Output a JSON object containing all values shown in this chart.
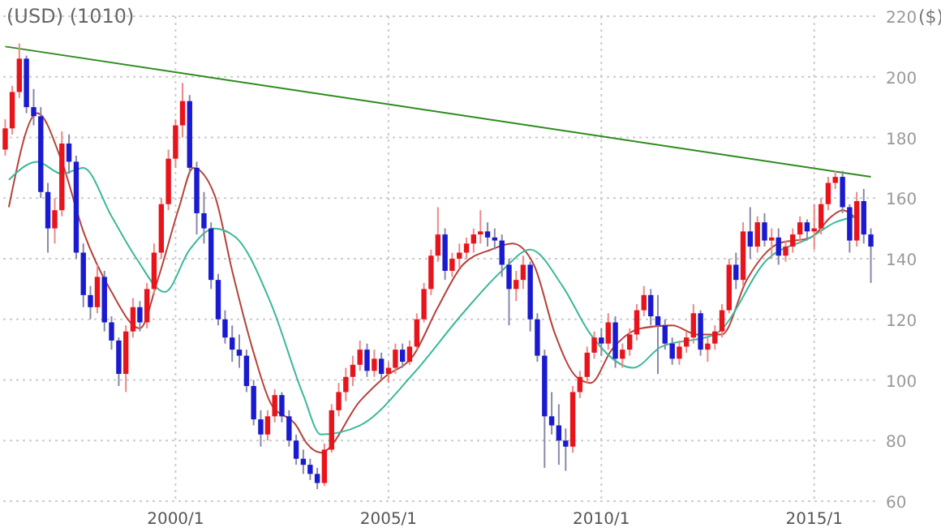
{
  "chart_data": {
    "type": "candlestick",
    "title": "(USD) (1010)",
    "ylabel": "($)",
    "x": [
      "1996-01",
      "1996-03",
      "1996-05",
      "1996-07",
      "1996-09",
      "1996-11",
      "1997-01",
      "1997-03",
      "1997-05",
      "1997-07",
      "1997-09",
      "1997-11",
      "1998-01",
      "1998-03",
      "1998-05",
      "1998-07",
      "1998-09",
      "1998-11",
      "1999-01",
      "1999-03",
      "1999-05",
      "1999-07",
      "1999-09",
      "1999-11",
      "2000-01",
      "2000-03",
      "2000-05",
      "2000-07",
      "2000-09",
      "2000-11",
      "2001-01",
      "2001-03",
      "2001-05",
      "2001-07",
      "2001-09",
      "2001-11",
      "2002-01",
      "2002-03",
      "2002-05",
      "2002-07",
      "2002-09",
      "2002-11",
      "2003-01",
      "2003-03",
      "2003-05",
      "2003-07",
      "2003-09",
      "2003-11",
      "2004-01",
      "2004-03",
      "2004-05",
      "2004-07",
      "2004-09",
      "2004-11",
      "2005-01",
      "2005-03",
      "2005-05",
      "2005-07",
      "2005-09",
      "2005-11",
      "2006-01",
      "2006-03",
      "2006-05",
      "2006-07",
      "2006-09",
      "2006-11",
      "2007-01",
      "2007-03",
      "2007-05",
      "2007-07",
      "2007-09",
      "2007-11",
      "2008-01",
      "2008-03",
      "2008-05",
      "2008-07",
      "2008-09",
      "2008-11",
      "2009-01",
      "2009-03",
      "2009-05",
      "2009-07",
      "2009-09",
      "2009-11",
      "2010-01",
      "2010-03",
      "2010-05",
      "2010-07",
      "2010-09",
      "2010-11",
      "2011-01",
      "2011-03",
      "2011-05",
      "2011-07",
      "2011-09",
      "2011-11",
      "2012-01",
      "2012-03",
      "2012-05",
      "2012-07",
      "2012-09",
      "2012-11",
      "2013-01",
      "2013-03",
      "2013-05",
      "2013-07",
      "2013-09",
      "2013-11",
      "2014-01",
      "2014-03",
      "2014-05",
      "2014-07",
      "2014-09",
      "2014-11",
      "2015-01",
      "2015-03",
      "2015-05",
      "2015-07",
      "2015-09",
      "2015-11",
      "2016-01",
      "2016-03",
      "2016-05"
    ],
    "ohlc": [
      [
        176,
        186,
        174,
        183
      ],
      [
        183,
        197,
        181,
        195
      ],
      [
        195,
        211,
        193,
        206
      ],
      [
        206,
        207,
        188,
        190
      ],
      [
        190,
        196,
        184,
        187
      ],
      [
        187,
        190,
        160,
        162
      ],
      [
        162,
        165,
        142,
        150
      ],
      [
        150,
        160,
        145,
        156
      ],
      [
        156,
        182,
        154,
        178
      ],
      [
        178,
        181,
        168,
        172
      ],
      [
        172,
        174,
        140,
        142
      ],
      [
        142,
        145,
        124,
        128
      ],
      [
        128,
        131,
        120,
        124
      ],
      [
        124,
        138,
        122,
        134
      ],
      [
        134,
        136,
        116,
        119
      ],
      [
        119,
        121,
        110,
        113
      ],
      [
        113,
        114,
        98,
        102
      ],
      [
        102,
        118,
        96,
        116
      ],
      [
        116,
        127,
        114,
        124
      ],
      [
        124,
        126,
        116,
        119
      ],
      [
        119,
        132,
        117,
        130
      ],
      [
        130,
        145,
        128,
        142
      ],
      [
        142,
        160,
        140,
        158
      ],
      [
        158,
        176,
        156,
        173
      ],
      [
        173,
        186,
        170,
        184
      ],
      [
        184,
        198,
        180,
        192
      ],
      [
        192,
        194,
        168,
        170
      ],
      [
        170,
        172,
        148,
        155
      ],
      [
        155,
        162,
        145,
        150
      ],
      [
        150,
        152,
        130,
        133
      ],
      [
        133,
        135,
        118,
        120
      ],
      [
        120,
        123,
        112,
        114
      ],
      [
        114,
        118,
        106,
        110
      ],
      [
        110,
        115,
        104,
        108
      ],
      [
        108,
        110,
        96,
        98
      ],
      [
        98,
        100,
        85,
        87
      ],
      [
        87,
        90,
        78,
        82
      ],
      [
        82,
        90,
        80,
        88
      ],
      [
        88,
        97,
        86,
        95
      ],
      [
        95,
        96,
        86,
        88
      ],
      [
        88,
        90,
        78,
        80
      ],
      [
        80,
        82,
        72,
        74
      ],
      [
        74,
        77,
        69,
        72
      ],
      [
        72,
        74,
        67,
        69
      ],
      [
        69,
        71,
        64,
        66
      ],
      [
        66,
        79,
        65,
        77
      ],
      [
        77,
        92,
        76,
        90
      ],
      [
        90,
        99,
        88,
        96
      ],
      [
        96,
        104,
        93,
        101
      ],
      [
        101,
        108,
        98,
        105
      ],
      [
        105,
        113,
        103,
        110
      ],
      [
        110,
        112,
        101,
        103
      ],
      [
        103,
        110,
        101,
        107
      ],
      [
        107,
        109,
        100,
        102
      ],
      [
        102,
        106,
        99,
        104
      ],
      [
        104,
        112,
        102,
        110
      ],
      [
        110,
        112,
        104,
        106
      ],
      [
        106,
        113,
        105,
        111
      ],
      [
        111,
        122,
        110,
        120
      ],
      [
        120,
        132,
        119,
        130
      ],
      [
        130,
        143,
        128,
        141
      ],
      [
        141,
        157,
        139,
        148
      ],
      [
        148,
        150,
        133,
        136
      ],
      [
        136,
        142,
        134,
        140
      ],
      [
        140,
        145,
        137,
        142
      ],
      [
        142,
        147,
        140,
        145
      ],
      [
        145,
        150,
        142,
        148
      ],
      [
        148,
        156,
        145,
        149
      ],
      [
        149,
        152,
        144,
        147
      ],
      [
        147,
        150,
        143,
        146
      ],
      [
        146,
        148,
        134,
        138
      ],
      [
        138,
        140,
        118,
        130
      ],
      [
        130,
        136,
        126,
        133
      ],
      [
        133,
        141,
        130,
        138
      ],
      [
        138,
        139,
        116,
        120
      ],
      [
        120,
        122,
        106,
        108
      ],
      [
        108,
        110,
        71,
        88
      ],
      [
        88,
        96,
        82,
        85
      ],
      [
        85,
        92,
        72,
        80
      ],
      [
        80,
        84,
        70,
        78
      ],
      [
        78,
        98,
        76,
        96
      ],
      [
        96,
        103,
        94,
        101
      ],
      [
        101,
        111,
        99,
        109
      ],
      [
        109,
        116,
        107,
        114
      ],
      [
        114,
        117,
        108,
        112
      ],
      [
        112,
        122,
        110,
        119
      ],
      [
        119,
        121,
        104,
        107
      ],
      [
        107,
        112,
        104,
        110
      ],
      [
        110,
        117,
        108,
        115
      ],
      [
        115,
        125,
        113,
        123
      ],
      [
        123,
        131,
        121,
        128
      ],
      [
        128,
        130,
        118,
        121
      ],
      [
        121,
        128,
        102,
        118
      ],
      [
        118,
        120,
        110,
        112
      ],
      [
        112,
        114,
        105,
        107
      ],
      [
        107,
        113,
        105,
        111
      ],
      [
        111,
        116,
        109,
        114
      ],
      [
        114,
        125,
        112,
        122
      ],
      [
        122,
        123,
        108,
        110
      ],
      [
        110,
        114,
        106,
        112
      ],
      [
        112,
        118,
        110,
        116
      ],
      [
        116,
        125,
        114,
        123
      ],
      [
        123,
        140,
        122,
        138
      ],
      [
        138,
        142,
        130,
        133
      ],
      [
        133,
        152,
        131,
        149
      ],
      [
        149,
        157,
        140,
        144
      ],
      [
        144,
        154,
        142,
        152
      ],
      [
        152,
        155,
        144,
        146
      ],
      [
        146,
        150,
        140,
        147
      ],
      [
        147,
        150,
        138,
        141
      ],
      [
        141,
        146,
        139,
        144
      ],
      [
        144,
        150,
        142,
        148
      ],
      [
        148,
        154,
        145,
        152
      ],
      [
        152,
        153,
        146,
        149
      ],
      [
        149,
        158,
        143,
        150
      ],
      [
        150,
        160,
        148,
        158
      ],
      [
        158,
        167,
        156,
        165
      ],
      [
        165,
        169,
        163,
        167
      ],
      [
        167,
        169,
        155,
        157
      ],
      [
        157,
        158,
        142,
        146
      ],
      [
        146,
        162,
        144,
        159
      ],
      [
        159,
        163,
        145,
        148
      ],
      [
        148,
        150,
        132,
        144
      ]
    ],
    "series": [
      {
        "type": "line",
        "color": "#b5433a",
        "x": [
          "1996-02",
          "1996-10",
          "1997-05",
          "1997-11",
          "1998-07",
          "1999-03",
          "1999-08",
          "2000-02",
          "2000-06",
          "2000-12",
          "2001-05",
          "2001-11",
          "2002-04",
          "2002-11",
          "2003-02",
          "2003-06",
          "2004-05",
          "2004-12",
          "2005-08",
          "2006-03",
          "2006-10",
          "2007-06",
          "2007-12",
          "2008-06",
          "2008-12",
          "2009-06",
          "2009-10",
          "2010-04",
          "2010-12",
          "2011-09",
          "2012-04",
          "2012-11",
          "2013-06",
          "2014-03",
          "2014-12",
          "2015-06",
          "2015-09",
          "2016-01"
        ],
        "values": [
          157,
          188,
          172,
          149,
          129,
          117,
          133,
          157,
          170,
          161,
          136,
          109,
          92,
          85,
          79,
          76,
          93,
          101,
          108,
          124,
          138,
          143,
          145,
          138,
          115,
          101,
          99,
          110,
          117,
          118,
          115,
          115,
          133,
          145,
          147,
          154,
          156,
          153
        ]
      },
      {
        "type": "line",
        "color": "#3cb89a",
        "x": [
          "1996-02",
          "1996-10",
          "1997-05",
          "1997-11",
          "1998-07",
          "1999-02",
          "1999-10",
          "2000-05",
          "2000-12",
          "2001-06",
          "2002-04",
          "2003-01",
          "2003-06",
          "2004-05",
          "2005-08",
          "2006-10",
          "2007-09",
          "2008-05",
          "2009-02",
          "2009-10",
          "2010-10",
          "2011-06",
          "2012-09",
          "2013-12",
          "2014-12",
          "2015-07",
          "2016-01"
        ],
        "values": [
          166,
          172,
          168,
          170,
          154,
          140,
          129,
          143,
          150,
          147,
          125,
          95,
          82,
          85,
          102,
          122,
          136,
          143,
          131,
          115,
          104,
          111,
          115,
          140,
          147,
          152,
          154
        ]
      },
      {
        "type": "line",
        "color": "#2e8b1e",
        "x": [
          "1996-01",
          "2016-05"
        ],
        "values": [
          210,
          167
        ]
      }
    ],
    "xlim": [
      "1995-12-15",
      "2016-06-15"
    ],
    "xticks": [
      {
        "value": "2000-01",
        "label": "2000/1"
      },
      {
        "value": "2005-01",
        "label": "2005/1"
      },
      {
        "value": "2010-01",
        "label": "2010/1"
      },
      {
        "value": "2015-01",
        "label": "2015/1"
      }
    ],
    "ylim": [
      60,
      220
    ],
    "yticks": [
      60,
      80,
      100,
      120,
      140,
      160,
      180,
      200,
      220
    ],
    "grid": true
  }
}
